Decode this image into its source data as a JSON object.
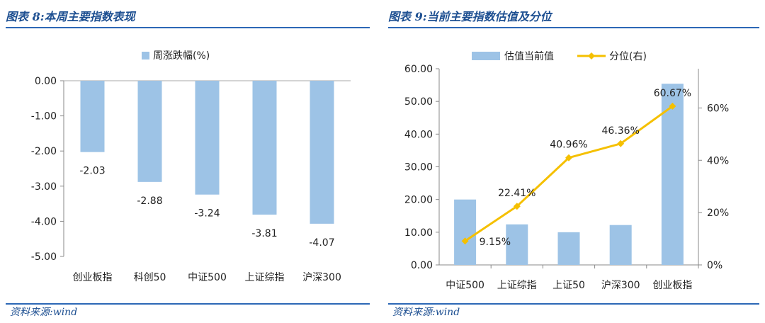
{
  "left": {
    "title": "图表 8:本周主要指数表现",
    "source": "资料来源:wind",
    "chart_data": {
      "type": "bar",
      "legend": "周涨跌幅(%)",
      "legend_position": "top",
      "categories": [
        "创业板指",
        "科创50",
        "中证500",
        "上证综指",
        "沪深300"
      ],
      "values": [
        -2.03,
        -2.88,
        -3.24,
        -3.81,
        -4.07
      ],
      "value_labels": [
        "-2.03",
        "-2.88",
        "-3.24",
        "-3.81",
        "-4.07"
      ],
      "y_ticks": [
        "0.00",
        "-1.00",
        "-2.00",
        "-3.00",
        "-4.00",
        "-5.00"
      ],
      "ylim": [
        -5,
        0
      ],
      "grid": false,
      "colors": {
        "bar": "#9dc3e6"
      }
    }
  },
  "right": {
    "title": "图表 9:当前主要指数估值及分位",
    "source": "资料来源:wind",
    "chart_data": {
      "type": "bar+line",
      "legend_position": "top",
      "categories": [
        "中证500",
        "上证综指",
        "上证50",
        "沪深300",
        "创业板指"
      ],
      "series": [
        {
          "name": "估值当前值",
          "type": "bar",
          "axis": "left",
          "values": [
            20.0,
            12.4,
            10.0,
            12.2,
            55.4
          ],
          "color": "#9dc3e6"
        },
        {
          "name": "分位(右)",
          "type": "line",
          "axis": "right",
          "values": [
            9.15,
            22.41,
            40.96,
            46.36,
            60.67
          ],
          "labels": [
            "9.15%",
            "22.41%",
            "40.96%",
            "46.36%",
            "60.67%"
          ],
          "color": "#f5c000"
        }
      ],
      "y_left_ticks": [
        "0.00",
        "10.00",
        "20.00",
        "30.00",
        "40.00",
        "50.00",
        "60.00"
      ],
      "y_left_lim": [
        0,
        60
      ],
      "y_right_ticks": [
        "0%",
        "20%",
        "40%",
        "60%"
      ],
      "y_right_lim": [
        0,
        75
      ],
      "grid": false
    }
  }
}
